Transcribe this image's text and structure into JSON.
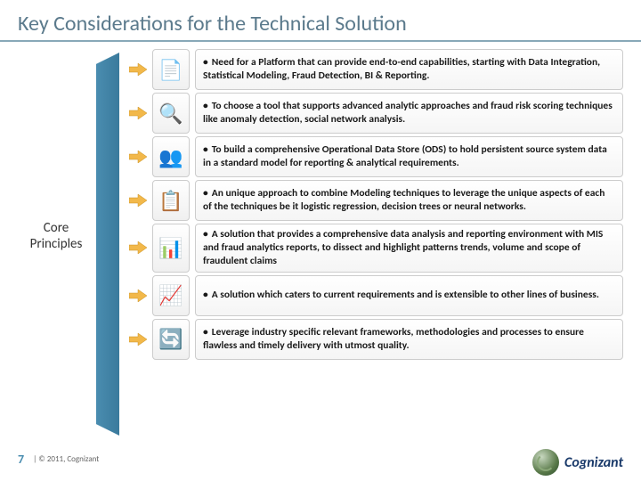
{
  "title": "Key Considerations for the Technical Solution",
  "core_label_line1": "Core",
  "core_label_line2": "Principles",
  "arrow_color": "#f2b84a",
  "blue_bar_color": "#3a7a9c",
  "items": [
    {
      "icon": "📄",
      "text": "Need for a Platform that can provide end-to-end capabilities, starting with Data Integration, Statistical Modeling, Fraud Detection, BI & Reporting."
    },
    {
      "icon": "🔍",
      "text": "To choose a tool that supports advanced analytic approaches and fraud risk scoring techniques like anomaly detection, social network analysis."
    },
    {
      "icon": "👥",
      "text": "To build a comprehensive Operational Data Store (ODS) to hold persistent source system data in a standard model for reporting & analytical requirements."
    },
    {
      "icon": "📋",
      "text": "An unique approach to combine Modeling techniques to leverage the unique aspects of each of the techniques be it logistic regression, decision trees or neural networks."
    },
    {
      "icon": "📊",
      "text": "A  solution that provides a comprehensive data analysis and reporting environment with MIS and fraud analytics reports, to dissect and highlight patterns trends, volume and scope of fraudulent claims"
    },
    {
      "icon": "📈",
      "text": "A solution which caters to current requirements and is extensible to other lines of business."
    },
    {
      "icon": "🔄",
      "text": "Leverage industry specific relevant frameworks, methodologies and processes to ensure flawless and timely delivery with utmost quality."
    }
  ],
  "page_number": "7",
  "copyright": "|  © 2011, Cognizant",
  "logo_text": "Cognizant"
}
